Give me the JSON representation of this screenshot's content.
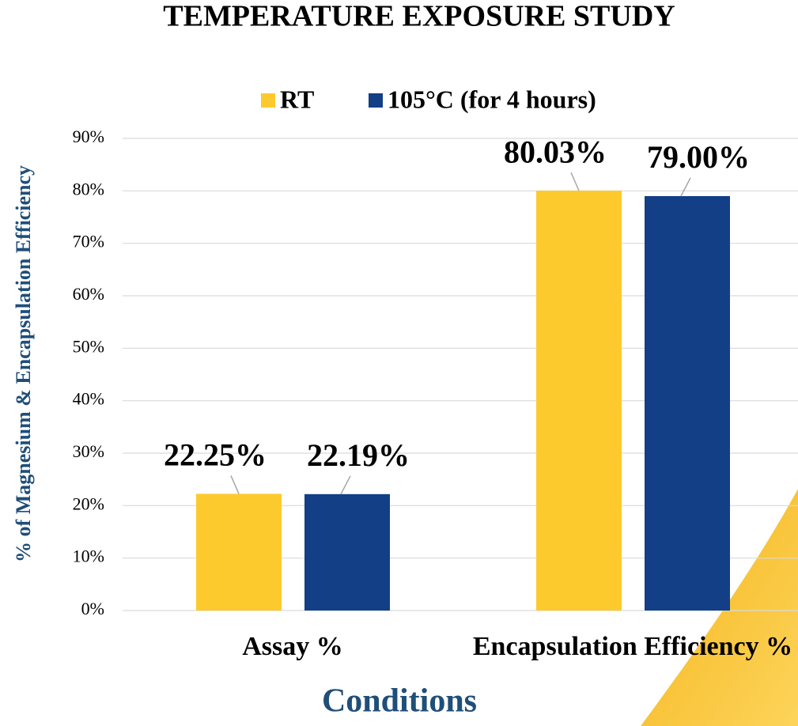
{
  "chart_data": {
    "type": "bar",
    "title": "TEMPERATURE EXPOSURE STUDY",
    "x_label": "Conditions",
    "y_label": "% of Magnesium & Encapsulation Efficiency",
    "categories": [
      "Assay %",
      "Encapsulation Efficiency %"
    ],
    "series": [
      {
        "name": "RT",
        "color": "#fdca2e",
        "values": [
          22.25,
          80.03
        ],
        "value_labels": [
          "22.25%",
          "80.03%"
        ]
      },
      {
        "name": "105°C (for 4 hours)",
        "color": "#123f85",
        "values": [
          22.19,
          79.0
        ],
        "value_labels": [
          "22.19%",
          "79.00%"
        ]
      }
    ],
    "ylim": [
      0,
      90
    ],
    "yticks": [
      {
        "value": 0,
        "label": "0%"
      },
      {
        "value": 10,
        "label": "10%"
      },
      {
        "value": 20,
        "label": "20%"
      },
      {
        "value": 30,
        "label": "30%"
      },
      {
        "value": 40,
        "label": "40%"
      },
      {
        "value": 50,
        "label": "50%"
      },
      {
        "value": 60,
        "label": "60%"
      },
      {
        "value": 70,
        "label": "70%"
      },
      {
        "value": 80,
        "label": "80%"
      },
      {
        "value": 90,
        "label": "90%"
      }
    ],
    "grid": true
  }
}
